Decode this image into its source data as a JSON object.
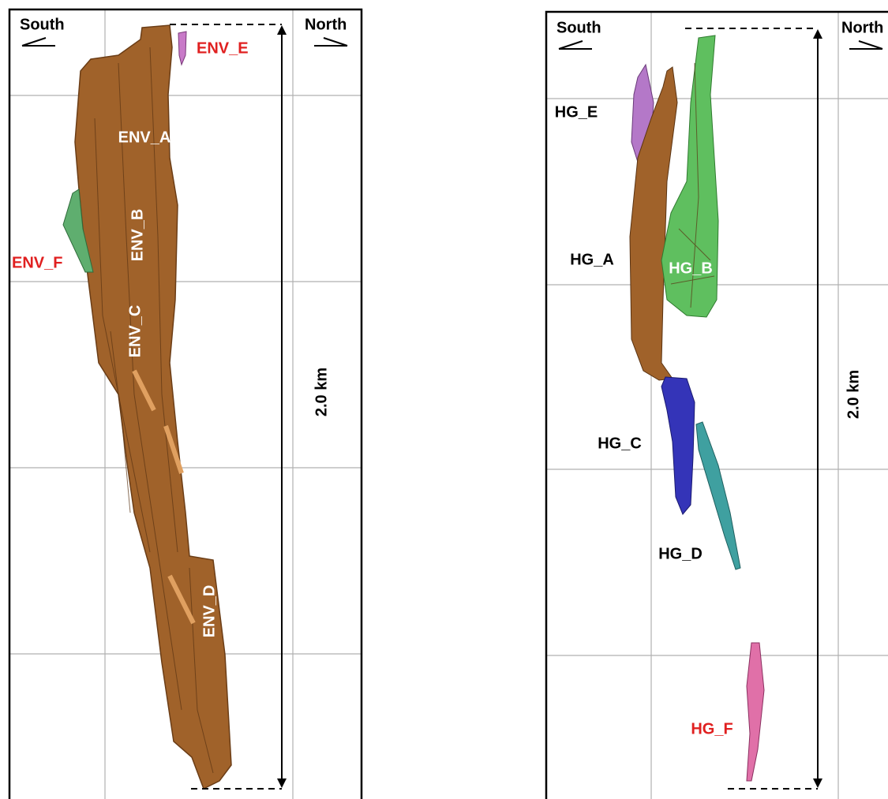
{
  "left": {
    "south": "South",
    "north": "North",
    "scale": "2.0 km",
    "bodies": {
      "a": "ENV_A",
      "b": "ENV_B",
      "c": "ENV_C",
      "d": "ENV_D",
      "e": "ENV_E",
      "f": "ENV_F"
    }
  },
  "right": {
    "south": "South",
    "north": "North",
    "scale": "2.0 km",
    "bodies": {
      "a": "HG_A",
      "b": "HG_B",
      "c": "HG_C",
      "d": "HG_D",
      "e": "HG_E",
      "f": "HG_F"
    }
  }
}
